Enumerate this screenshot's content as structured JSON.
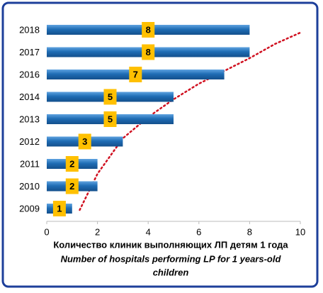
{
  "chart_data": {
    "type": "bar",
    "orientation": "horizontal",
    "categories": [
      "2009",
      "2010",
      "2011",
      "2012",
      "2013",
      "2014",
      "2016",
      "2017",
      "2018"
    ],
    "values": [
      1,
      2,
      2,
      3,
      5,
      5,
      7,
      8,
      8
    ],
    "color": "#1f6db5",
    "label_color": "#ffc000",
    "xlim": [
      0,
      10
    ],
    "xticks": [
      0,
      2,
      4,
      6,
      8,
      10
    ],
    "xlabel": "Количество клиник выполняющих ЛП детям 1 года",
    "xlabel_en": "Number of hospitals performing LP for 1 years-old",
    "xlabel_en2": "children"
  }
}
